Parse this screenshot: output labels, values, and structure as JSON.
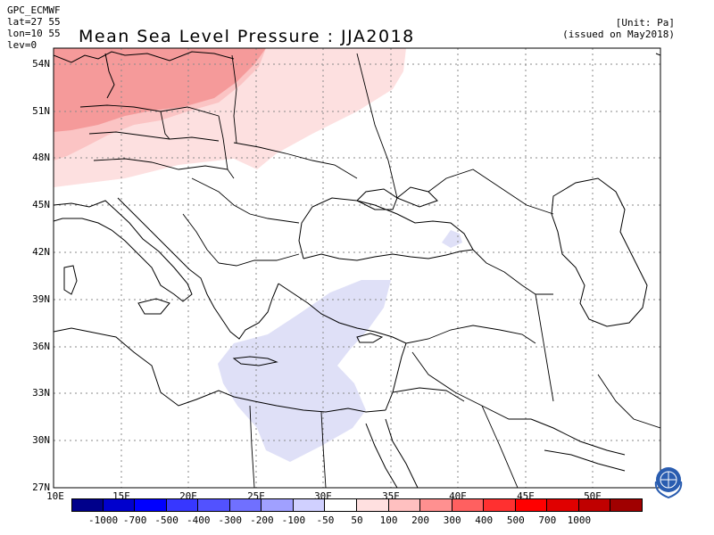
{
  "meta": {
    "model": "GPC_ECMWF",
    "lat": "lat=27 55",
    "lon": "lon=10 55",
    "lev": "lev=0"
  },
  "title": "Mean Sea Level Pressure : JJA2018",
  "unit": "[Unit: Pa]",
  "issued": "(issued on May2018)",
  "map": {
    "lat_range": [
      27,
      55
    ],
    "lon_range": [
      10,
      55
    ],
    "lat_labels": [
      "54N",
      "51N",
      "48N",
      "45N",
      "42N",
      "39N",
      "36N",
      "33N",
      "30N",
      "27N"
    ],
    "lat_values": [
      54,
      51,
      48,
      45,
      42,
      39,
      36,
      33,
      30,
      27
    ],
    "lon_labels": [
      "10E",
      "15E",
      "20E",
      "25E",
      "30E",
      "35E",
      "40E",
      "45E",
      "50E"
    ],
    "lon_values": [
      10,
      15,
      20,
      25,
      30,
      35,
      40,
      45,
      50
    ],
    "anomaly_regions": [
      {
        "level": "200 to 300",
        "color": "#f59a9a",
        "location": "Central Europe (North Sea, Germany, Poland)"
      },
      {
        "level": "100 to 200",
        "color": "#fbc4c4",
        "location": "Central Europe"
      },
      {
        "level": "50 to 100",
        "color": "#fde0e0",
        "location": "Europe north of 47N, western Russia"
      },
      {
        "level": "-100 to -50",
        "color": "#dfe0f7",
        "location": "Eastern Mediterranean, Aegean, Crete to Egypt"
      },
      {
        "level": "-100 to -50",
        "color": "#dfe0f7",
        "location": "Eastern Black Sea"
      }
    ]
  },
  "colorbar": {
    "colors": [
      "#00008b",
      "#0000cd",
      "#0000ff",
      "#3737ff",
      "#5252ff",
      "#7070ff",
      "#a0a0ff",
      "#d0d0ff",
      "#ffffff",
      "#ffe0e0",
      "#ffc0c0",
      "#ff9090",
      "#ff6060",
      "#ff3030",
      "#ff0000",
      "#e00000",
      "#c00000",
      "#a00000"
    ],
    "labels": [
      "-1000",
      "-700",
      "-500",
      "-400",
      "-300",
      "-200",
      "-100",
      "-50",
      "50",
      "100",
      "200",
      "300",
      "400",
      "500",
      "700",
      "1000"
    ]
  },
  "logo": {
    "name": "WMO"
  }
}
